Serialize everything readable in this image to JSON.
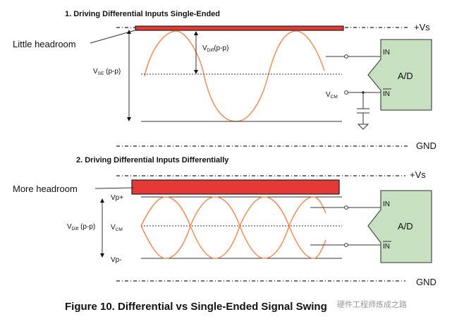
{
  "section1": {
    "heading": "1. Driving Differential Inputs Single-Ended",
    "headroom_label": "Little headroom",
    "vs_label": "+Vs",
    "gnd_label": "GND",
    "vse_main": "V",
    "vse_sub": "SE",
    "vse_unit": " (p-p)",
    "vdiff_main": "V",
    "vdiff_sub": "Diff",
    "vdiff_unit": "(p-p)",
    "vcm_main": "V",
    "vcm_sub": "CM",
    "adc_label": "A/D",
    "pin_in": "IN",
    "pin_inbar": "IN"
  },
  "section2": {
    "heading": "2. Driving Differential Inputs Differentially",
    "headroom_label": "More headroom",
    "vs_label": "+Vs",
    "gnd_label": "GND",
    "vp_plus": "Vp+",
    "vp_minus": "Vp-",
    "vcm_main": "V",
    "vcm_sub": "CM",
    "vdiff_main": "V",
    "vdiff_sub": "Diff",
    "vdiff_unit": " (p-p)",
    "adc_label": "A/D",
    "pin_in": "IN",
    "pin_inbar": "IN"
  },
  "caption": "Figure 10. Differential vs Single-Ended Signal Swing",
  "watermark": "硬件工程师炼成之路",
  "colors": {
    "bar": "#e43a33",
    "wave": "#f28c55",
    "adc": "#c7e0c0"
  }
}
